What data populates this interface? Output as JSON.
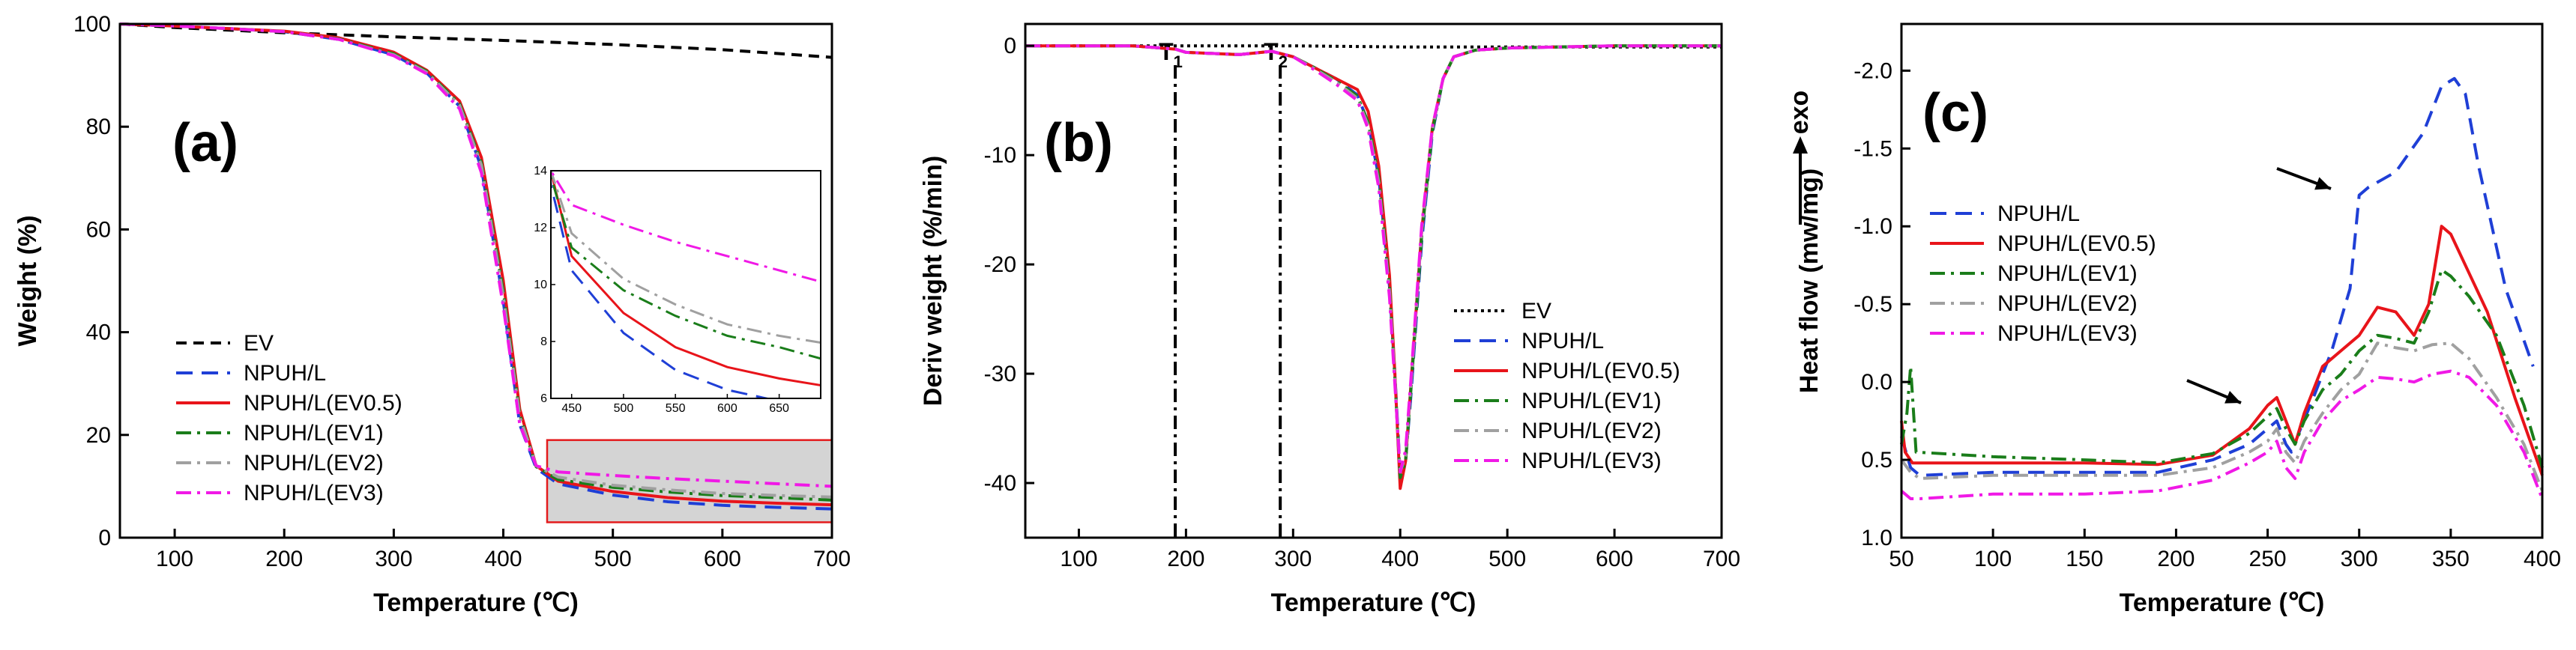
{
  "chart_data": [
    {
      "type": "line",
      "panel_label": "(a)",
      "xlabel": "Temperature (℃)",
      "ylabel": "Weight (%)",
      "xlim": [
        50,
        700
      ],
      "ylim": [
        0,
        100
      ],
      "xticks": [
        100,
        200,
        300,
        400,
        500,
        600,
        700
      ],
      "yticks": [
        0,
        20,
        40,
        60,
        80,
        100
      ],
      "legend_position": "lower-left",
      "series": [
        {
          "name": "EV",
          "color": "#000000",
          "dash": "dash",
          "x": [
            50,
            100,
            200,
            300,
            400,
            500,
            600,
            700
          ],
          "y": [
            100,
            99.3,
            98.3,
            97.5,
            96.8,
            96.0,
            95.0,
            93.5
          ]
        },
        {
          "name": "NPUH/L",
          "color": "#1f3fd6",
          "dash": "longdash",
          "x": [
            50,
            100,
            150,
            200,
            250,
            300,
            330,
            360,
            380,
            400,
            415,
            430,
            450,
            500,
            550,
            600,
            650,
            700
          ],
          "y": [
            100,
            99.6,
            99.1,
            98.5,
            97.0,
            94.0,
            90.5,
            84.0,
            72.0,
            46.0,
            22.0,
            13.5,
            10.5,
            8.3,
            7.0,
            6.3,
            5.9,
            5.6
          ]
        },
        {
          "name": "NPUH/L(EV0.5)",
          "color": "#e8141a",
          "dash": "solid",
          "x": [
            50,
            100,
            150,
            200,
            250,
            300,
            330,
            360,
            380,
            400,
            415,
            430,
            450,
            500,
            550,
            600,
            650,
            700
          ],
          "y": [
            100,
            99.6,
            99.1,
            98.6,
            97.3,
            94.5,
            91.0,
            85.0,
            74.0,
            50.0,
            25.0,
            14.0,
            11.0,
            9.0,
            7.8,
            7.1,
            6.7,
            6.4
          ]
        },
        {
          "name": "NPUH/L(EV1)",
          "color": "#1a7d1a",
          "dash": "dashdot",
          "x": [
            50,
            100,
            150,
            200,
            250,
            300,
            330,
            360,
            380,
            400,
            415,
            430,
            450,
            500,
            550,
            600,
            650,
            700
          ],
          "y": [
            100,
            99.6,
            99.1,
            98.5,
            97.1,
            94.2,
            90.8,
            84.5,
            73.0,
            48.0,
            24.0,
            13.8,
            11.3,
            9.8,
            8.9,
            8.2,
            7.8,
            7.3
          ]
        },
        {
          "name": "NPUH/L(EV2)",
          "color": "#a0a0a0",
          "dash": "dashdot",
          "x": [
            50,
            100,
            150,
            200,
            250,
            300,
            330,
            360,
            380,
            400,
            415,
            430,
            450,
            500,
            550,
            600,
            650,
            700
          ],
          "y": [
            100,
            99.6,
            99.1,
            98.5,
            97.0,
            94.0,
            90.6,
            84.2,
            72.5,
            47.0,
            23.5,
            14.0,
            11.8,
            10.2,
            9.3,
            8.6,
            8.2,
            7.9
          ]
        },
        {
          "name": "NPUH/L(EV3)",
          "color": "#f019e6",
          "dash": "dashdot",
          "x": [
            50,
            100,
            150,
            200,
            250,
            300,
            330,
            360,
            380,
            400,
            415,
            430,
            450,
            500,
            550,
            600,
            650,
            700
          ],
          "y": [
            100,
            99.6,
            99.1,
            98.5,
            97.0,
            93.8,
            90.3,
            83.5,
            71.0,
            45.0,
            22.0,
            14.0,
            12.8,
            12.1,
            11.5,
            11.0,
            10.5,
            10.0
          ]
        }
      ],
      "inset": {
        "xlim": [
          430,
          690
        ],
        "ylim": [
          6,
          14
        ],
        "xticks": [
          450,
          500,
          550,
          600,
          650
        ],
        "yticks": [
          6,
          8,
          10,
          12,
          14
        ]
      },
      "highlight_region": {
        "x": [
          440,
          700
        ],
        "y": [
          3,
          19
        ]
      }
    },
    {
      "type": "line",
      "panel_label": "(b)",
      "xlabel": "Temperature (℃)",
      "ylabel": "Deriv weight (%/min)",
      "xlim": [
        50,
        700
      ],
      "ylim": [
        -45,
        2
      ],
      "xticks": [
        100,
        200,
        300,
        400,
        500,
        600,
        700
      ],
      "yticks": [
        0,
        -10,
        -20,
        -30,
        -40
      ],
      "vlines": [
        {
          "x": 190,
          "label": "T",
          "sub": "1"
        },
        {
          "x": 288,
          "label": "T",
          "sub": "2"
        }
      ],
      "legend_position": "lower-right",
      "series": [
        {
          "name": "EV",
          "color": "#000000",
          "dash": "dot",
          "x": [
            50,
            200,
            300,
            400,
            500,
            600,
            700
          ],
          "y": [
            0,
            0,
            0,
            -0.1,
            -0.1,
            -0.1,
            -0.1
          ]
        },
        {
          "name": "NPUH/L",
          "color": "#1f3fd6",
          "dash": "longdash",
          "x": [
            50,
            150,
            190,
            200,
            250,
            280,
            300,
            320,
            340,
            360,
            370,
            380,
            390,
            395,
            400,
            405,
            410,
            420,
            430,
            440,
            450,
            470,
            500,
            600,
            700
          ],
          "y": [
            0,
            0,
            -0.3,
            -0.6,
            -0.8,
            -0.5,
            -1.0,
            -2.0,
            -3.0,
            -4.5,
            -7.0,
            -12.0,
            -22.0,
            -30.0,
            -39.0,
            -38.0,
            -32.0,
            -18.0,
            -8.0,
            -3.0,
            -1.0,
            -0.4,
            -0.2,
            0,
            0
          ]
        },
        {
          "name": "NPUH/L(EV0.5)",
          "color": "#e8141a",
          "dash": "solid",
          "x": [
            50,
            150,
            190,
            200,
            250,
            280,
            300,
            320,
            340,
            360,
            370,
            380,
            390,
            395,
            400,
            405,
            410,
            420,
            430,
            440,
            450,
            470,
            500,
            600,
            700
          ],
          "y": [
            0,
            0,
            -0.3,
            -0.6,
            -0.8,
            -0.5,
            -1.0,
            -2.0,
            -3.0,
            -4.0,
            -6.0,
            -11.0,
            -21.0,
            -30.0,
            -40.5,
            -38.0,
            -31.0,
            -17.0,
            -7.5,
            -3.0,
            -1.0,
            -0.4,
            -0.2,
            0,
            0
          ]
        },
        {
          "name": "NPUH/L(EV1)",
          "color": "#1a7d1a",
          "dash": "dashdot",
          "x": [
            50,
            150,
            190,
            200,
            250,
            280,
            300,
            320,
            340,
            360,
            370,
            380,
            390,
            395,
            400,
            405,
            410,
            420,
            430,
            440,
            450,
            470,
            500,
            600,
            700
          ],
          "y": [
            0,
            0,
            -0.3,
            -0.6,
            -0.8,
            -0.5,
            -1.0,
            -2.0,
            -3.2,
            -4.6,
            -7.0,
            -12.0,
            -22.0,
            -30.5,
            -39.5,
            -38.0,
            -31.5,
            -17.5,
            -7.8,
            -3.0,
            -1.0,
            -0.4,
            -0.2,
            0,
            0
          ]
        },
        {
          "name": "NPUH/L(EV2)",
          "color": "#a0a0a0",
          "dash": "dashdot",
          "x": [
            50,
            150,
            190,
            200,
            250,
            280,
            300,
            320,
            340,
            360,
            370,
            380,
            390,
            395,
            400,
            405,
            410,
            420,
            430,
            440,
            450,
            470,
            500,
            600,
            700
          ],
          "y": [
            0,
            0,
            -0.3,
            -0.6,
            -0.8,
            -0.5,
            -1.0,
            -2.1,
            -3.3,
            -4.8,
            -7.3,
            -12.5,
            -22.5,
            -30.5,
            -39.0,
            -37.5,
            -31.0,
            -17.0,
            -7.6,
            -3.0,
            -1.0,
            -0.4,
            -0.2,
            0,
            0
          ]
        },
        {
          "name": "NPUH/L(EV3)",
          "color": "#f019e6",
          "dash": "dashdot",
          "x": [
            50,
            150,
            190,
            200,
            250,
            280,
            300,
            320,
            340,
            360,
            370,
            380,
            390,
            395,
            400,
            405,
            410,
            420,
            430,
            440,
            450,
            470,
            500,
            600,
            700
          ],
          "y": [
            0,
            0,
            -0.3,
            -0.6,
            -0.8,
            -0.5,
            -1.0,
            -2.2,
            -3.5,
            -5.0,
            -7.6,
            -13.0,
            -23.0,
            -31.0,
            -39.0,
            -37.0,
            -30.5,
            -16.5,
            -7.4,
            -3.0,
            -1.0,
            -0.4,
            -0.2,
            0,
            0
          ]
        }
      ]
    },
    {
      "type": "line",
      "panel_label": "(c)",
      "xlabel": "Temperature (℃)",
      "ylabel": "Heat flow (mw/mg)",
      "side_label": "exo",
      "xlim": [
        50,
        400
      ],
      "ylim": [
        1.0,
        -2.3
      ],
      "xticks": [
        50,
        100,
        150,
        200,
        250,
        300,
        350,
        400
      ],
      "yticks": [
        -2.0,
        -1.5,
        -1.0,
        -0.5,
        0.0,
        0.5,
        1.0
      ],
      "ytick_labels": [
        "-2.0",
        "-1.5",
        "-1.0",
        "-0.5",
        "0.0",
        "0.5",
        "1.0"
      ],
      "annotations": [
        "arrow near 245 ℃",
        "arrow near 300 ℃"
      ],
      "legend_position": "middle-left",
      "series": [
        {
          "name": "NPUH/L",
          "color": "#1f3fd6",
          "dash": "longdash",
          "x": [
            50,
            55,
            60,
            100,
            150,
            190,
            220,
            240,
            250,
            255,
            260,
            263,
            268,
            275,
            285,
            295,
            300,
            305,
            320,
            335,
            345,
            352,
            358,
            365,
            380,
            395
          ],
          "y": [
            0.35,
            0.55,
            0.6,
            0.58,
            0.58,
            0.58,
            0.5,
            0.4,
            0.3,
            0.25,
            0.4,
            0.45,
            0.3,
            0.1,
            -0.2,
            -0.6,
            -1.2,
            -1.25,
            -1.35,
            -1.6,
            -1.9,
            -1.95,
            -1.85,
            -1.4,
            -0.6,
            -0.1
          ]
        },
        {
          "name": "NPUH/L(EV0.5)",
          "color": "#e8141a",
          "dash": "solid",
          "x": [
            50,
            52,
            56,
            100,
            150,
            190,
            220,
            240,
            250,
            255,
            260,
            265,
            270,
            280,
            290,
            300,
            310,
            320,
            330,
            338,
            345,
            350,
            358,
            370,
            385,
            400
          ],
          "y": [
            0.25,
            0.45,
            0.52,
            0.52,
            0.52,
            0.53,
            0.47,
            0.3,
            0.15,
            0.1,
            0.25,
            0.4,
            0.2,
            -0.1,
            -0.2,
            -0.3,
            -0.48,
            -0.45,
            -0.3,
            -0.5,
            -1.0,
            -0.95,
            -0.75,
            -0.45,
            0.1,
            0.6
          ]
        },
        {
          "name": "NPUH/L(EV1)",
          "color": "#1a7d1a",
          "dash": "dashdot",
          "x": [
            50,
            53,
            55,
            58,
            100,
            150,
            190,
            220,
            240,
            250,
            255,
            260,
            265,
            270,
            280,
            290,
            300,
            310,
            320,
            330,
            338,
            345,
            350,
            360,
            375,
            390,
            400
          ],
          "y": [
            0.4,
            0.2,
            -0.1,
            0.45,
            0.48,
            0.5,
            0.52,
            0.46,
            0.33,
            0.22,
            0.17,
            0.3,
            0.4,
            0.25,
            0.05,
            -0.05,
            -0.2,
            -0.3,
            -0.28,
            -0.25,
            -0.45,
            -0.72,
            -0.68,
            -0.55,
            -0.3,
            0.15,
            0.55
          ]
        },
        {
          "name": "NPUH/L(EV2)",
          "color": "#a0a0a0",
          "dash": "dashdot",
          "x": [
            50,
            55,
            60,
            100,
            150,
            190,
            220,
            240,
            250,
            255,
            260,
            265,
            270,
            280,
            290,
            300,
            310,
            320,
            330,
            340,
            350,
            360,
            375,
            390,
            400
          ],
          "y": [
            0.5,
            0.58,
            0.62,
            0.6,
            0.6,
            0.6,
            0.55,
            0.45,
            0.38,
            0.3,
            0.45,
            0.52,
            0.38,
            0.2,
            0.05,
            -0.05,
            -0.25,
            -0.22,
            -0.2,
            -0.24,
            -0.25,
            -0.15,
            0.1,
            0.4,
            0.7
          ]
        },
        {
          "name": "NPUH/L(EV3)",
          "color": "#f019e6",
          "dash": "dashdot",
          "x": [
            50,
            55,
            60,
            100,
            150,
            190,
            220,
            240,
            250,
            255,
            260,
            265,
            270,
            280,
            290,
            300,
            310,
            320,
            330,
            340,
            350,
            360,
            375,
            390,
            400
          ],
          "y": [
            0.7,
            0.75,
            0.75,
            0.72,
            0.72,
            0.7,
            0.63,
            0.52,
            0.45,
            0.38,
            0.55,
            0.62,
            0.45,
            0.25,
            0.12,
            0.05,
            -0.03,
            -0.02,
            0.0,
            -0.05,
            -0.07,
            -0.03,
            0.15,
            0.45,
            0.75
          ]
        }
      ]
    }
  ]
}
